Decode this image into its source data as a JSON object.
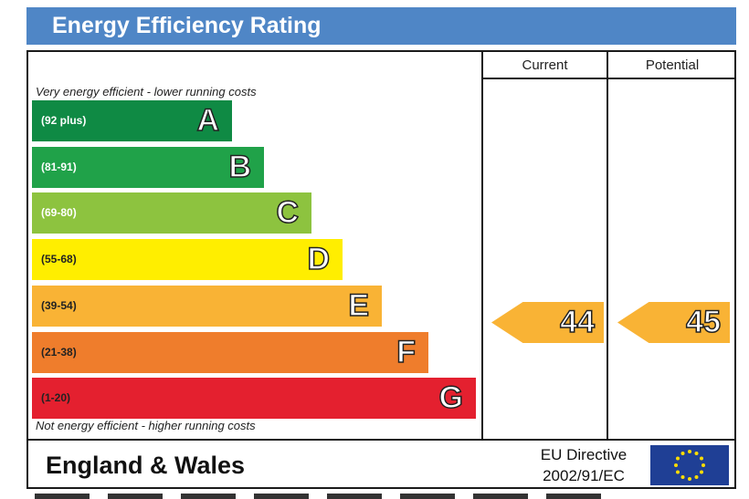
{
  "header": {
    "title": "Energy Efficiency Rating"
  },
  "columns": {
    "current": "Current",
    "potential": "Potential"
  },
  "notes": {
    "top": "Very energy efficient - lower running costs",
    "bottom": "Not energy efficient - higher running costs"
  },
  "chart_data": {
    "type": "bar",
    "title": "Energy Efficiency Rating",
    "categories": [
      "A",
      "B",
      "C",
      "D",
      "E",
      "F",
      "G"
    ],
    "ranges": [
      "(92 plus)",
      "(81-91)",
      "(69-80)",
      "(55-68)",
      "(39-54)",
      "(21-38)",
      "(1-20)"
    ],
    "colors": [
      "#0f8a44",
      "#20a249",
      "#8dc33f",
      "#ffee00",
      "#f9b335",
      "#ef7d2c",
      "#e4202f"
    ],
    "ratings": {
      "current": 44,
      "potential": 45,
      "band": "E",
      "color": "#f9b335"
    }
  },
  "footer": {
    "region": "England & Wales",
    "directive_line1": "EU Directive",
    "directive_line2": "2002/91/EC",
    "flag_icon": "eu-flag-icon"
  }
}
